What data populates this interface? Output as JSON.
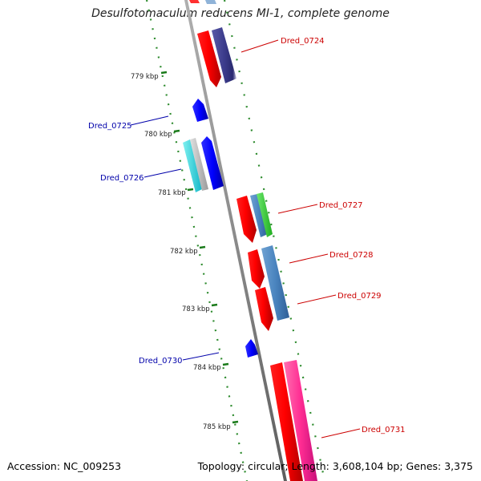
{
  "title": "Desulfotomaculum reducens MI-1, complete genome",
  "footer": {
    "accession": "Accession: NC_009253",
    "summary": "Topology: circular; Length: 3,608,104 bp; Genes: 3,375"
  },
  "ticks": [
    "779 kbp",
    "780 kbp",
    "781 kbp",
    "782 kbp",
    "783 kbp",
    "784 kbp",
    "785 kbp"
  ],
  "genes": [
    {
      "name": "Dred_0724",
      "strand": "forward"
    },
    {
      "name": "Dred_0725",
      "strand": "reverse"
    },
    {
      "name": "Dred_0726",
      "strand": "reverse"
    },
    {
      "name": "Dred_0727",
      "strand": "forward"
    },
    {
      "name": "Dred_0728",
      "strand": "forward"
    },
    {
      "name": "Dred_0729",
      "strand": "forward"
    },
    {
      "name": "Dred_0730",
      "strand": "reverse"
    },
    {
      "name": "Dred_0731",
      "strand": "forward"
    }
  ],
  "colors": {
    "backbone": "#8c8c8c",
    "forward_label": "#cc0000",
    "reverse_label": "#0000aa",
    "tick": "#1a7a1a",
    "cds_forward": "#ff0000",
    "cds_reverse": "#0000ff"
  }
}
